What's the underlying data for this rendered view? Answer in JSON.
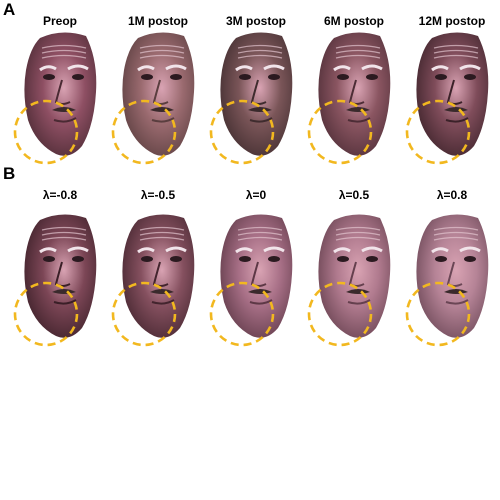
{
  "panels": [
    {
      "letter": "A",
      "labels": [
        "Preop",
        "1M postop",
        "3M postop",
        "6M postop",
        "12M postop"
      ],
      "tones": [
        "#8e4f63",
        "#9a6a6f",
        "#7a5558",
        "#8a5561",
        "#7f4c5a"
      ],
      "shade": [
        "#4a2a33",
        "#5a3e3f",
        "#3f2c2e",
        "#4d2d36",
        "#3b2229"
      ]
    },
    {
      "letter": "B",
      "labels": [
        "λ=-0.8",
        "λ=-0.5",
        "λ=0",
        "λ=0.5",
        "λ=0.8"
      ],
      "tones": [
        "#7c4656",
        "#85505f",
        "#a76f86",
        "#b07a8e",
        "#b58396"
      ],
      "shade": [
        "#3a1f27",
        "#43252e",
        "#5d3846",
        "#65404e",
        "#6a4655"
      ]
    }
  ],
  "circle_color": "#f2b81f"
}
